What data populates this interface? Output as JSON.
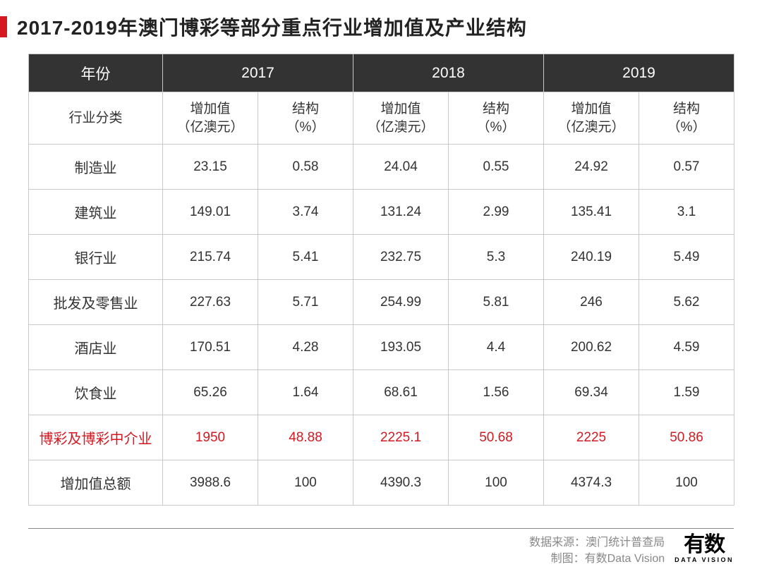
{
  "title": "2017-2019年澳门博彩等部分重点行业增加值及产业结构",
  "table": {
    "type": "table",
    "header_bg": "#333333",
    "header_fg": "#ffffff",
    "border_color": "#c9c9c9",
    "highlight_color": "#d41921",
    "corner_label": "年份",
    "years": [
      "2017",
      "2018",
      "2019"
    ],
    "category_label": "行业分类",
    "subheaders": {
      "value": "增加值\n（亿澳元）",
      "share": "结构\n（%）"
    },
    "rows": [
      {
        "label": "制造业",
        "v1": "23.15",
        "s1": "0.58",
        "v2": "24.04",
        "s2": "0.55",
        "v3": "24.92",
        "s3": "0.57",
        "hl": false
      },
      {
        "label": "建筑业",
        "v1": "149.01",
        "s1": "3.74",
        "v2": "131.24",
        "s2": "2.99",
        "v3": "135.41",
        "s3": "3.1",
        "hl": false
      },
      {
        "label": "银行业",
        "v1": "215.74",
        "s1": "5.41",
        "v2": "232.75",
        "s2": "5.3",
        "v3": "240.19",
        "s3": "5.49",
        "hl": false
      },
      {
        "label": "批发及零售业",
        "v1": "227.63",
        "s1": "5.71",
        "v2": "254.99",
        "s2": "5.81",
        "v3": "246",
        "s3": "5.62",
        "hl": false
      },
      {
        "label": "酒店业",
        "v1": "170.51",
        "s1": "4.28",
        "v2": "193.05",
        "s2": "4.4",
        "v3": "200.62",
        "s3": "4.59",
        "hl": false
      },
      {
        "label": "饮食业",
        "v1": "65.26",
        "s1": "1.64",
        "v2": "68.61",
        "s2": "1.56",
        "v3": "69.34",
        "s3": "1.59",
        "hl": false
      },
      {
        "label": "博彩及博彩中介业",
        "v1": "1950",
        "s1": "48.88",
        "v2": "2225.1",
        "s2": "50.68",
        "v3": "2225",
        "s3": "50.86",
        "hl": true
      },
      {
        "label": "增加值总额",
        "v1": "3988.6",
        "s1": "100",
        "v2": "4390.3",
        "s2": "100",
        "v3": "4374.3",
        "s3": "100",
        "hl": false
      }
    ]
  },
  "footer": {
    "source_label": "数据来源：",
    "source_value": "澳门统计普查局",
    "credit_label": "制图：",
    "credit_value": "有数Data Vision",
    "logo_cn": "有数",
    "logo_en": "DATA VISION"
  },
  "colors": {
    "accent_red": "#d41921",
    "text": "#333333",
    "muted": "#888888",
    "bg": "#ffffff"
  }
}
